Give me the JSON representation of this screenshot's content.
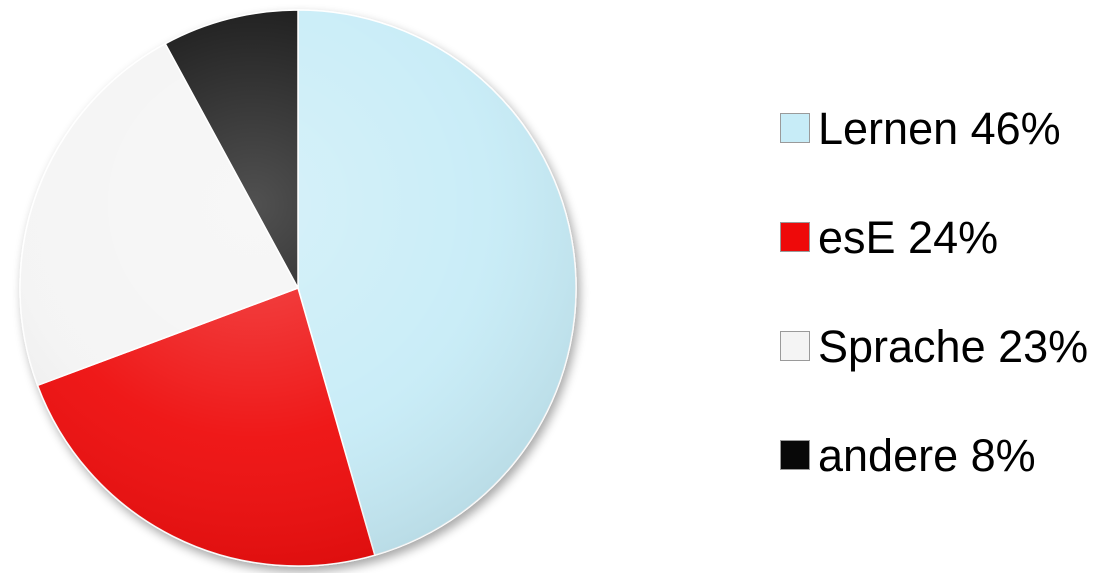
{
  "chart_data": {
    "type": "pie",
    "title": "",
    "legend_position": "right",
    "slices": [
      {
        "label": "Lernen 46%",
        "value": 46,
        "color": "#c7ecf7"
      },
      {
        "label": "esE 24%",
        "value": 24,
        "color": "#ee0a0a"
      },
      {
        "label": "Sprache 23%",
        "value": 23,
        "color": "#f4f4f4"
      },
      {
        "label": "andere 8%",
        "value": 8,
        "color": "#080808"
      }
    ]
  }
}
